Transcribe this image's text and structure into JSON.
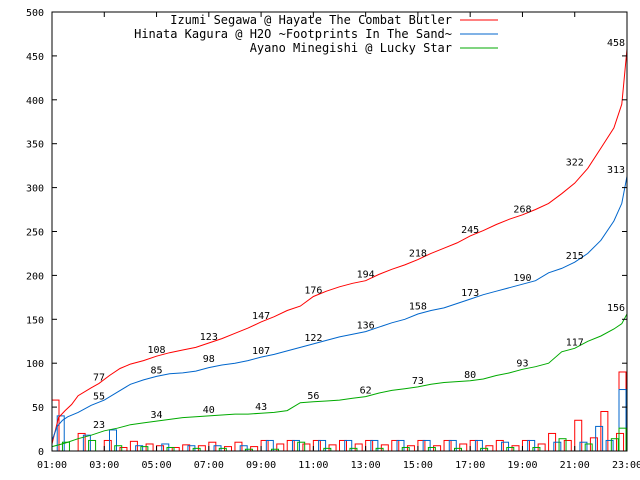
{
  "chart_data": {
    "type": "line",
    "x_ticks": [
      "01:00",
      "03:00",
      "05:00",
      "07:00",
      "09:00",
      "11:00",
      "13:00",
      "15:00",
      "17:00",
      "19:00",
      "21:00",
      "23:00"
    ],
    "y_ticks": [
      "0",
      "50",
      "100",
      "150",
      "200",
      "250",
      "300",
      "350",
      "400",
      "450",
      "500"
    ],
    "xlim_hours": [
      1,
      23
    ],
    "ylim": [
      0,
      500
    ],
    "grid": false,
    "legend_position": "top-right",
    "series": [
      {
        "name": "Izumi Segawa @ Hayate The Combat Butler",
        "color": "#ff0000",
        "points": [
          [
            1.0,
            8
          ],
          [
            1.25,
            38
          ],
          [
            1.5,
            46
          ],
          [
            1.75,
            53
          ],
          [
            2.0,
            63
          ],
          [
            2.5,
            72
          ],
          [
            2.8,
            77
          ],
          [
            3.2,
            86
          ],
          [
            3.6,
            94
          ],
          [
            4.0,
            99
          ],
          [
            4.5,
            103
          ],
          [
            5.0,
            108
          ],
          [
            5.5,
            112
          ],
          [
            6.0,
            115
          ],
          [
            6.5,
            118
          ],
          [
            7.0,
            123
          ],
          [
            7.5,
            128
          ],
          [
            8.0,
            134
          ],
          [
            8.5,
            140
          ],
          [
            9.0,
            147
          ],
          [
            9.5,
            153
          ],
          [
            10.0,
            160
          ],
          [
            10.5,
            165
          ],
          [
            11.0,
            176
          ],
          [
            11.5,
            182
          ],
          [
            12.0,
            187
          ],
          [
            12.5,
            191
          ],
          [
            13.0,
            194
          ],
          [
            13.5,
            201
          ],
          [
            14.0,
            207
          ],
          [
            14.5,
            212
          ],
          [
            15.0,
            218
          ],
          [
            15.5,
            225
          ],
          [
            16.0,
            231
          ],
          [
            16.5,
            237
          ],
          [
            17.0,
            245
          ],
          [
            17.5,
            251
          ],
          [
            18.0,
            258
          ],
          [
            18.5,
            264
          ],
          [
            19.0,
            269
          ],
          [
            19.5,
            275
          ],
          [
            20.0,
            282
          ],
          [
            20.5,
            293
          ],
          [
            21.0,
            305
          ],
          [
            21.5,
            322
          ],
          [
            22.0,
            345
          ],
          [
            22.5,
            368
          ],
          [
            22.8,
            395
          ],
          [
            23.0,
            458
          ]
        ],
        "labels": [
          [
            2.8,
            77
          ],
          [
            5.0,
            108
          ],
          [
            7.0,
            123
          ],
          [
            9.0,
            147
          ],
          [
            11.0,
            176
          ],
          [
            13.0,
            194
          ],
          [
            15.0,
            218
          ],
          [
            17.0,
            245
          ],
          [
            19.0,
            268
          ],
          [
            21.0,
            322
          ],
          [
            23.0,
            458
          ]
        ]
      },
      {
        "name": "Hinata Kagura @ H2O ~Footprints In The Sand~",
        "color": "#0066cc",
        "points": [
          [
            1.0,
            12
          ],
          [
            1.2,
            28
          ],
          [
            1.4,
            35
          ],
          [
            1.6,
            39
          ],
          [
            2.0,
            44
          ],
          [
            2.5,
            52
          ],
          [
            3.0,
            58
          ],
          [
            3.5,
            67
          ],
          [
            4.0,
            76
          ],
          [
            4.5,
            81
          ],
          [
            5.0,
            85
          ],
          [
            5.5,
            88
          ],
          [
            6.0,
            89
          ],
          [
            6.5,
            91
          ],
          [
            7.0,
            95
          ],
          [
            7.5,
            98
          ],
          [
            8.0,
            100
          ],
          [
            8.5,
            103
          ],
          [
            9.0,
            107
          ],
          [
            9.5,
            110
          ],
          [
            10.0,
            114
          ],
          [
            10.5,
            118
          ],
          [
            11.0,
            122
          ],
          [
            11.5,
            126
          ],
          [
            12.0,
            130
          ],
          [
            12.5,
            133
          ],
          [
            13.0,
            136
          ],
          [
            13.5,
            141
          ],
          [
            14.0,
            146
          ],
          [
            14.5,
            150
          ],
          [
            15.0,
            156
          ],
          [
            15.5,
            160
          ],
          [
            16.0,
            163
          ],
          [
            16.5,
            168
          ],
          [
            17.0,
            173
          ],
          [
            17.5,
            178
          ],
          [
            18.0,
            182
          ],
          [
            18.5,
            186
          ],
          [
            19.0,
            190
          ],
          [
            19.5,
            194
          ],
          [
            20.0,
            203
          ],
          [
            20.5,
            208
          ],
          [
            21.0,
            215
          ],
          [
            21.5,
            225
          ],
          [
            22.0,
            240
          ],
          [
            22.5,
            262
          ],
          [
            22.8,
            282
          ],
          [
            23.0,
            313
          ]
        ],
        "labels": [
          [
            2.8,
            55
          ],
          [
            5.0,
            85
          ],
          [
            7.0,
            98
          ],
          [
            9.0,
            107
          ],
          [
            11.0,
            122
          ],
          [
            13.0,
            136
          ],
          [
            15.0,
            158
          ],
          [
            17.0,
            173
          ],
          [
            19.0,
            190
          ],
          [
            21.0,
            215
          ],
          [
            23.0,
            313
          ]
        ]
      },
      {
        "name": "Ayano Minegishi @ Lucky Star",
        "color": "#00aa00",
        "points": [
          [
            1.0,
            5
          ],
          [
            1.5,
            9
          ],
          [
            2.0,
            14
          ],
          [
            2.5,
            18
          ],
          [
            3.0,
            23
          ],
          [
            3.5,
            26
          ],
          [
            4.0,
            30
          ],
          [
            4.5,
            32
          ],
          [
            5.0,
            34
          ],
          [
            5.5,
            36
          ],
          [
            6.0,
            38
          ],
          [
            6.5,
            39
          ],
          [
            7.0,
            40
          ],
          [
            7.5,
            41
          ],
          [
            8.0,
            42
          ],
          [
            8.5,
            42
          ],
          [
            9.0,
            43
          ],
          [
            9.5,
            44
          ],
          [
            10.0,
            46
          ],
          [
            10.5,
            55
          ],
          [
            11.0,
            56
          ],
          [
            11.5,
            57
          ],
          [
            12.0,
            58
          ],
          [
            12.5,
            60
          ],
          [
            13.0,
            62
          ],
          [
            13.5,
            66
          ],
          [
            14.0,
            69
          ],
          [
            14.5,
            71
          ],
          [
            15.0,
            73
          ],
          [
            15.5,
            76
          ],
          [
            16.0,
            78
          ],
          [
            16.5,
            79
          ],
          [
            17.0,
            80
          ],
          [
            17.5,
            82
          ],
          [
            18.0,
            86
          ],
          [
            18.5,
            89
          ],
          [
            19.0,
            93
          ],
          [
            19.5,
            96
          ],
          [
            20.0,
            100
          ],
          [
            20.5,
            113
          ],
          [
            21.0,
            117
          ],
          [
            21.5,
            125
          ],
          [
            22.0,
            131
          ],
          [
            22.5,
            139
          ],
          [
            22.8,
            145
          ],
          [
            23.0,
            156
          ]
        ],
        "labels": [
          [
            2.8,
            23
          ],
          [
            5.0,
            34
          ],
          [
            7.0,
            40
          ],
          [
            9.0,
            43
          ],
          [
            11.0,
            56
          ],
          [
            13.0,
            62
          ],
          [
            15.0,
            73
          ],
          [
            17.0,
            80
          ],
          [
            19.0,
            93
          ],
          [
            21.0,
            117
          ],
          [
            23.0,
            156
          ]
        ]
      }
    ],
    "bars": {
      "red": [
        [
          1.0,
          58
        ],
        [
          2.0,
          20
        ],
        [
          3.0,
          12
        ],
        [
          3.6,
          4
        ],
        [
          4.0,
          11
        ],
        [
          4.6,
          8
        ],
        [
          5.0,
          6
        ],
        [
          5.6,
          4
        ],
        [
          6.0,
          7
        ],
        [
          6.6,
          6
        ],
        [
          7.0,
          10
        ],
        [
          7.6,
          5
        ],
        [
          8.0,
          10
        ],
        [
          8.6,
          5
        ],
        [
          9.0,
          12
        ],
        [
          9.6,
          8
        ],
        [
          10.0,
          12
        ],
        [
          10.6,
          8
        ],
        [
          11.0,
          12
        ],
        [
          11.6,
          7
        ],
        [
          12.0,
          12
        ],
        [
          12.6,
          8
        ],
        [
          13.0,
          12
        ],
        [
          13.6,
          7
        ],
        [
          14.0,
          12
        ],
        [
          14.6,
          6
        ],
        [
          15.0,
          12
        ],
        [
          15.6,
          6
        ],
        [
          16.0,
          12
        ],
        [
          16.6,
          8
        ],
        [
          17.0,
          12
        ],
        [
          17.6,
          6
        ],
        [
          18.0,
          12
        ],
        [
          18.6,
          6
        ],
        [
          19.0,
          12
        ],
        [
          19.6,
          8
        ],
        [
          20.0,
          20
        ],
        [
          20.6,
          12
        ],
        [
          21.0,
          35
        ],
        [
          21.6,
          15
        ],
        [
          22.0,
          45
        ],
        [
          22.6,
          20
        ],
        [
          22.9,
          90
        ]
      ],
      "blue": [
        [
          1.2,
          40
        ],
        [
          2.2,
          18
        ],
        [
          3.2,
          24
        ],
        [
          4.2,
          6
        ],
        [
          5.2,
          8
        ],
        [
          6.2,
          6
        ],
        [
          7.2,
          6
        ],
        [
          8.2,
          6
        ],
        [
          9.2,
          12
        ],
        [
          10.2,
          12
        ],
        [
          11.2,
          12
        ],
        [
          12.2,
          12
        ],
        [
          13.2,
          12
        ],
        [
          14.2,
          12
        ],
        [
          15.2,
          12
        ],
        [
          16.2,
          12
        ],
        [
          17.2,
          12
        ],
        [
          18.2,
          10
        ],
        [
          19.2,
          12
        ],
        [
          20.2,
          10
        ],
        [
          21.2,
          10
        ],
        [
          21.8,
          28
        ],
        [
          22.2,
          12
        ],
        [
          23.0,
          70
        ]
      ],
      "green": [
        [
          1.4,
          10
        ],
        [
          2.4,
          12
        ],
        [
          3.4,
          6
        ],
        [
          4.4,
          5
        ],
        [
          5.4,
          4
        ],
        [
          6.4,
          3
        ],
        [
          7.4,
          3
        ],
        [
          8.4,
          2
        ],
        [
          9.4,
          2
        ],
        [
          10.4,
          10
        ],
        [
          11.4,
          3
        ],
        [
          12.4,
          3
        ],
        [
          13.4,
          3
        ],
        [
          14.4,
          4
        ],
        [
          15.4,
          4
        ],
        [
          16.4,
          3
        ],
        [
          17.4,
          3
        ],
        [
          18.4,
          4
        ],
        [
          19.4,
          4
        ],
        [
          20.4,
          14
        ],
        [
          21.4,
          8
        ],
        [
          22.4,
          14
        ],
        [
          23.0,
          26
        ]
      ]
    }
  }
}
